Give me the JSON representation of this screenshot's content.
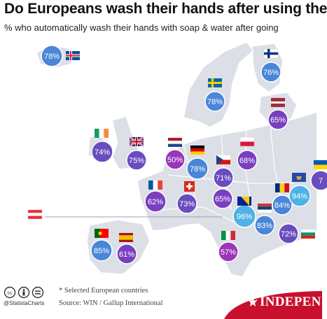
{
  "header": {
    "title": "Do Europeans wash their hands after using the",
    "subtitle": "% who automatically wash their hands with soap & water after going"
  },
  "footer": {
    "note": "* Selected European countries",
    "source": "Source: WIN / Gallup International",
    "handle": "@StatistaCharts",
    "brand": "INDEPEN"
  },
  "colors": {
    "background": "#ffffff",
    "land": "#dcdfe6",
    "border": "#ffffff",
    "bubble_purple": "#6a4cc0",
    "bubble_blue": "#4a86d8",
    "bubble_magenta": "#9a37b8",
    "bubble_light_blue": "#4fb2e6",
    "brand_red": "#c8102e"
  },
  "chart_data": {
    "type": "map",
    "title": "Do Europeans wash their hands after using the",
    "subtitle": "% who automatically wash their hands with soap & water after going",
    "note": "* Selected European countries",
    "source": "Source: WIN / Gallup International",
    "unit": "%",
    "points": [
      {
        "flag": "Iceland",
        "value": 78,
        "label": "78%",
        "color": "#4a86d8"
      },
      {
        "flag": "Finland",
        "value": 76,
        "label": "76%",
        "color": "#4a86d8"
      },
      {
        "flag": "Sweden",
        "value": 78,
        "label": "78%",
        "color": "#4a86d8"
      },
      {
        "flag": "Latvia",
        "value": 65,
        "label": "65%",
        "color": "#7a3fc0"
      },
      {
        "flag": "Ireland",
        "value": 74,
        "label": "74%",
        "color": "#6a4cc0"
      },
      {
        "flag": "United Kingdom",
        "value": 75,
        "label": "75%",
        "color": "#6a4cc0"
      },
      {
        "flag": "Netherlands",
        "value": 50,
        "label": "50%",
        "color": "#9a37b8"
      },
      {
        "flag": "Germany",
        "value": 78,
        "label": "78%",
        "color": "#4a86d8"
      },
      {
        "flag": "Poland",
        "value": 68,
        "label": "68%",
        "color": "#7a3fc0"
      },
      {
        "flag": "Czechia",
        "value": 71,
        "label": "71%",
        "color": "#6a4cc0"
      },
      {
        "flag": "France",
        "value": 62,
        "label": "62%",
        "color": "#7a3fc0"
      },
      {
        "flag": "Switzerland",
        "value": 73,
        "label": "73%",
        "color": "#6a4cc0"
      },
      {
        "flag": "Austria",
        "value": 65,
        "label": "65%",
        "color": "#7a3fc0"
      },
      {
        "flag": "Bosnia and Herzegovina",
        "value": 96,
        "label": "96%",
        "color": "#4fb2e6"
      },
      {
        "flag": "Serbia",
        "value": 83,
        "label": "83%",
        "color": "#4a86d8"
      },
      {
        "flag": "Romania",
        "value": 84,
        "label": "84%",
        "color": "#4a86d8"
      },
      {
        "flag": "Kosovo",
        "value": 94,
        "label": "94%",
        "color": "#4fb2e6"
      },
      {
        "flag": "Bulgaria",
        "value": 72,
        "label": "72%",
        "color": "#6a4cc0"
      },
      {
        "flag": "Ukraine",
        "value": 7,
        "label": "7",
        "color": "#6a4cc0"
      },
      {
        "flag": "Portugal",
        "value": 85,
        "label": "85%",
        "color": "#4a86d8"
      },
      {
        "flag": "Spain",
        "value": 61,
        "label": "61%",
        "color": "#7a3fc0"
      },
      {
        "flag": "Italy",
        "value": 57,
        "label": "57%",
        "color": "#9a37b8"
      },
      {
        "flag": "Austria (legend)",
        "value": null,
        "label": "",
        "color": "#dcdfe6"
      }
    ]
  }
}
